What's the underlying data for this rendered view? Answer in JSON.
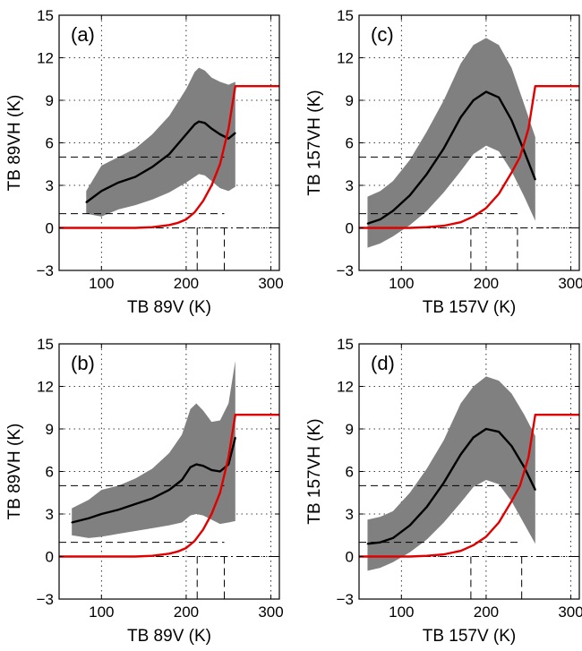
{
  "chart_data": [
    {
      "type": "line",
      "panel_label": "(a)",
      "xlabel": "TB 89V (K)",
      "ylabel": "TB 89VH (K)",
      "xlim": [
        50,
        310
      ],
      "ylim": [
        -3,
        15
      ],
      "xticks": [
        100,
        200,
        300
      ],
      "yticks": [
        -3,
        0,
        3,
        6,
        9,
        12,
        15
      ],
      "grid": true,
      "series": [
        {
          "role": "mean",
          "color": "#000000",
          "x": [
            82,
            100,
            120,
            140,
            160,
            180,
            200,
            210,
            215,
            222,
            230,
            240,
            250,
            258
          ],
          "y": [
            1.8,
            2.6,
            3.2,
            3.6,
            4.3,
            5.2,
            6.6,
            7.3,
            7.5,
            7.4,
            7.0,
            6.6,
            6.3,
            6.7
          ]
        },
        {
          "role": "spread",
          "color": "#808080",
          "x": [
            82,
            100,
            120,
            140,
            160,
            180,
            200,
            210,
            215,
            222,
            230,
            240,
            250,
            258
          ],
          "lower": [
            1.0,
            0.8,
            1.3,
            1.6,
            2.0,
            2.5,
            3.2,
            3.6,
            3.8,
            3.7,
            3.3,
            2.8,
            2.6,
            2.9
          ],
          "upper": [
            2.6,
            4.4,
            5.0,
            5.6,
            6.6,
            7.9,
            9.8,
            11.0,
            11.3,
            11.1,
            10.6,
            10.3,
            10.1,
            10.3
          ]
        },
        {
          "role": "threshold",
          "color": "#e00000",
          "x": [
            50,
            140,
            160,
            180,
            190,
            200,
            210,
            220,
            230,
            240,
            250,
            258,
            310
          ],
          "y": [
            0,
            0,
            0.05,
            0.2,
            0.35,
            0.6,
            1.1,
            1.9,
            3.0,
            4.5,
            7.0,
            10,
            10
          ]
        }
      ],
      "reference_lines": {
        "horizontal": [
          1,
          5
        ],
        "vertical": [
          213,
          245
        ]
      }
    },
    {
      "type": "line",
      "panel_label": "(b)",
      "xlabel": "TB 89V (K)",
      "ylabel": "TB 89VH (K)",
      "xlim": [
        50,
        310
      ],
      "ylim": [
        -3,
        15
      ],
      "xticks": [
        100,
        200,
        300
      ],
      "yticks": [
        -3,
        0,
        3,
        6,
        9,
        12,
        15
      ],
      "grid": true,
      "series": [
        {
          "role": "mean",
          "color": "#000000",
          "x": [
            65,
            85,
            100,
            120,
            140,
            160,
            180,
            195,
            205,
            212,
            220,
            230,
            240,
            250,
            258
          ],
          "y": [
            2.4,
            2.7,
            3.0,
            3.3,
            3.7,
            4.1,
            4.7,
            5.4,
            6.3,
            6.5,
            6.4,
            6.1,
            6.0,
            6.5,
            8.4
          ]
        },
        {
          "role": "spread",
          "color": "#808080",
          "x": [
            65,
            85,
            100,
            120,
            140,
            160,
            180,
            195,
            205,
            212,
            220,
            230,
            240,
            250,
            258
          ],
          "lower": [
            1.5,
            1.3,
            1.4,
            1.6,
            1.8,
            2.0,
            2.2,
            2.4,
            2.9,
            3.0,
            2.9,
            2.6,
            2.3,
            2.4,
            2.5
          ],
          "upper": [
            3.4,
            4.0,
            4.7,
            5.0,
            5.5,
            6.2,
            7.3,
            8.6,
            10.4,
            10.8,
            10.3,
            9.5,
            9.6,
            10.8,
            13.8
          ]
        },
        {
          "role": "threshold",
          "color": "#e00000",
          "x": [
            50,
            140,
            160,
            180,
            190,
            200,
            210,
            220,
            230,
            240,
            250,
            258,
            310
          ],
          "y": [
            0,
            0,
            0.05,
            0.2,
            0.35,
            0.6,
            1.1,
            1.9,
            3.0,
            4.5,
            7.0,
            10,
            10
          ]
        }
      ],
      "reference_lines": {
        "horizontal": [
          1,
          5
        ],
        "vertical": [
          213,
          245
        ]
      }
    },
    {
      "type": "line",
      "panel_label": "(c)",
      "xlabel": "TB 157V (K)",
      "ylabel": "TB 157VH (K)",
      "xlim": [
        50,
        310
      ],
      "ylim": [
        -3,
        15
      ],
      "xticks": [
        100,
        200,
        300
      ],
      "yticks": [
        -3,
        0,
        3,
        6,
        9,
        12,
        15
      ],
      "grid": true,
      "series": [
        {
          "role": "mean",
          "color": "#000000",
          "x": [
            60,
            75,
            90,
            110,
            130,
            150,
            170,
            185,
            200,
            215,
            230,
            245,
            258
          ],
          "y": [
            0.3,
            0.6,
            1.2,
            2.3,
            3.8,
            5.6,
            7.8,
            9.0,
            9.6,
            9.2,
            7.6,
            5.4,
            3.4
          ]
        },
        {
          "role": "spread",
          "color": "#808080",
          "x": [
            60,
            75,
            90,
            110,
            130,
            150,
            170,
            185,
            200,
            215,
            230,
            245,
            258
          ],
          "lower": [
            -1.4,
            -1.1,
            -0.6,
            0.2,
            1.2,
            2.5,
            4.0,
            5.2,
            5.8,
            5.4,
            4.0,
            2.2,
            0.5
          ],
          "upper": [
            2.2,
            2.6,
            3.3,
            4.8,
            6.8,
            9.0,
            11.6,
            12.9,
            13.4,
            12.9,
            11.3,
            8.7,
            6.4
          ]
        },
        {
          "role": "threshold",
          "color": "#e00000",
          "x": [
            50,
            110,
            130,
            150,
            170,
            185,
            200,
            215,
            230,
            240,
            250,
            258,
            310
          ],
          "y": [
            0,
            0,
            0.05,
            0.15,
            0.4,
            0.8,
            1.4,
            2.4,
            3.9,
            5.0,
            7.0,
            10,
            10
          ]
        }
      ],
      "reference_lines": {
        "horizontal": [
          1,
          5
        ],
        "vertical": [
          182,
          237
        ]
      }
    },
    {
      "type": "line",
      "panel_label": "(d)",
      "xlabel": "TB 157V (K)",
      "ylabel": "TB 157VH (K)",
      "xlim": [
        50,
        310
      ],
      "ylim": [
        -3,
        15
      ],
      "xticks": [
        100,
        200,
        300
      ],
      "yticks": [
        -3,
        0,
        3,
        6,
        9,
        12,
        15
      ],
      "grid": true,
      "series": [
        {
          "role": "mean",
          "color": "#000000",
          "x": [
            60,
            75,
            90,
            110,
            130,
            150,
            170,
            185,
            200,
            215,
            230,
            245,
            258
          ],
          "y": [
            0.9,
            1.0,
            1.3,
            2.2,
            3.5,
            5.2,
            7.2,
            8.4,
            9.0,
            8.8,
            7.8,
            6.3,
            4.7
          ]
        },
        {
          "role": "spread",
          "color": "#808080",
          "x": [
            60,
            75,
            90,
            110,
            130,
            150,
            170,
            185,
            200,
            215,
            230,
            245,
            258
          ],
          "lower": [
            -1.0,
            -0.8,
            -0.4,
            0.3,
            1.2,
            2.4,
            3.8,
            4.9,
            5.4,
            5.1,
            3.9,
            2.3,
            0.9
          ],
          "upper": [
            2.6,
            2.8,
            3.2,
            4.5,
            6.2,
            8.2,
            10.8,
            12.0,
            12.7,
            12.4,
            11.5,
            10.0,
            8.5
          ]
        },
        {
          "role": "threshold",
          "color": "#e00000",
          "x": [
            50,
            110,
            130,
            150,
            170,
            185,
            200,
            215,
            230,
            240,
            250,
            258,
            310
          ],
          "y": [
            0,
            0,
            0.05,
            0.15,
            0.4,
            0.8,
            1.4,
            2.4,
            3.9,
            5.0,
            7.0,
            10,
            10
          ]
        }
      ],
      "reference_lines": {
        "horizontal": [
          1,
          5
        ],
        "vertical": [
          182,
          242
        ]
      }
    }
  ]
}
